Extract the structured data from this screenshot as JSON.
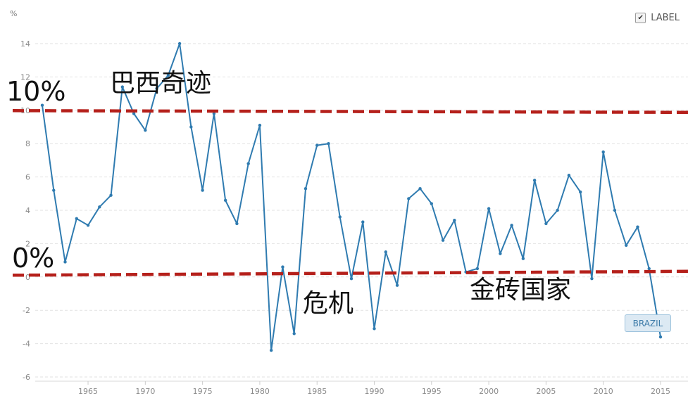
{
  "legend": {
    "label": "LABEL",
    "checked": true,
    "check_glyph": "✔"
  },
  "series_tag": "BRAZIL",
  "annotations": {
    "ten_percent": "10%",
    "zero_percent": "0%",
    "miracle": "巴西奇迹",
    "crisis": "危机",
    "brics": "金砖国家"
  },
  "colors": {
    "line": "#2f7bb0",
    "dashed": "#b5201b",
    "grid": "#e2e2e2"
  },
  "chart_data": {
    "type": "line",
    "title": "",
    "xlabel": "",
    "ylabel": "%",
    "ylim": [
      -6,
      14
    ],
    "xlim": [
      1960,
      2017
    ],
    "grid": true,
    "legend_position": "top-right",
    "x_ticks": [
      1965,
      1970,
      1975,
      1980,
      1985,
      1990,
      1995,
      2000,
      2005,
      2010,
      2015
    ],
    "y_ticks": [
      -6,
      -4,
      -2,
      0,
      2,
      4,
      6,
      8,
      10,
      12,
      14
    ],
    "reference_lines": [
      {
        "label": "10%",
        "value": 10,
        "style": "dashed"
      },
      {
        "label": "0%",
        "value": 0,
        "style": "dashed"
      }
    ],
    "series": [
      {
        "name": "BRAZIL",
        "x": [
          1961,
          1962,
          1963,
          1964,
          1965,
          1966,
          1967,
          1968,
          1969,
          1970,
          1971,
          1972,
          1973,
          1974,
          1975,
          1976,
          1977,
          1978,
          1979,
          1980,
          1981,
          1982,
          1983,
          1984,
          1985,
          1986,
          1987,
          1988,
          1989,
          1990,
          1991,
          1992,
          1993,
          1994,
          1995,
          1996,
          1997,
          1998,
          1999,
          2000,
          2001,
          2002,
          2003,
          2004,
          2005,
          2006,
          2007,
          2008,
          2009,
          2010,
          2011,
          2012,
          2013,
          2014,
          2015
        ],
        "values": [
          10.3,
          5.2,
          0.9,
          3.5,
          3.1,
          4.2,
          4.9,
          11.4,
          9.8,
          8.8,
          11.3,
          12.1,
          14.0,
          9.0,
          5.2,
          9.8,
          4.6,
          3.2,
          6.8,
          9.1,
          -4.4,
          0.6,
          -3.4,
          5.3,
          7.9,
          8.0,
          3.6,
          -0.1,
          3.3,
          -3.1,
          1.5,
          -0.5,
          4.7,
          5.3,
          4.4,
          2.2,
          3.4,
          0.3,
          0.5,
          4.1,
          1.4,
          3.1,
          1.1,
          5.8,
          3.2,
          4.0,
          6.1,
          5.1,
          -0.1,
          7.5,
          4.0,
          1.9,
          3.0,
          0.5,
          -3.6
        ]
      }
    ]
  }
}
